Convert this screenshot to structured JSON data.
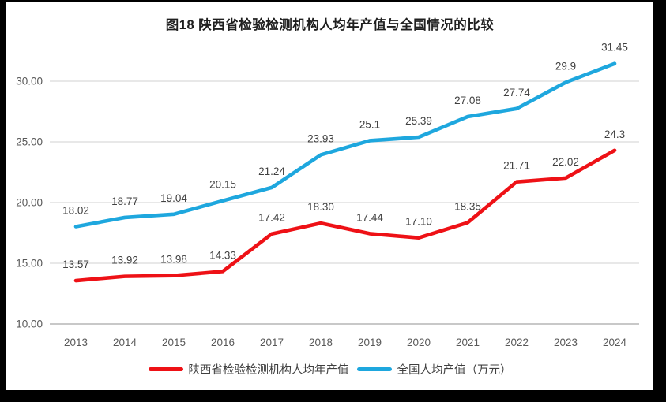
{
  "title": "图18 陕西省检验检测机构人均年产值与全国情况的比较",
  "chart_data": {
    "type": "line",
    "title": "图18 陕西省检验检测机构人均年产值与全国情况的比较",
    "categories": [
      "2013",
      "2014",
      "2015",
      "2016",
      "2017",
      "2018",
      "2019",
      "2020",
      "2021",
      "2022",
      "2023",
      "2024"
    ],
    "series": [
      {
        "name": "陕西省检验检测机构人均年产值",
        "color": "#ee1116",
        "values": [
          13.57,
          13.92,
          13.98,
          14.33,
          17.42,
          18.3,
          17.44,
          17.1,
          18.35,
          21.71,
          22.02,
          24.3
        ],
        "labels": [
          "13.57",
          "13.92",
          "13.98",
          "14.33",
          "17.42",
          "18.30",
          "17.44",
          "17.10",
          "18.35",
          "21.71",
          "22.02",
          "24.3"
        ]
      },
      {
        "name": "全国人均产值（万元）",
        "color": "#1ea7de",
        "values": [
          18.02,
          18.77,
          19.04,
          20.15,
          21.24,
          23.93,
          25.1,
          25.39,
          27.08,
          27.74,
          29.9,
          31.45
        ],
        "labels": [
          "18.02",
          "18.77",
          "19.04",
          "20.15",
          "21.24",
          "23.93",
          "25.1",
          "25.39",
          "27.08",
          "27.74",
          "29.9",
          "31.45"
        ]
      }
    ],
    "y_ticks": [
      {
        "value": 10,
        "label": "10.00"
      },
      {
        "value": 15,
        "label": "15.00"
      },
      {
        "value": 20,
        "label": "20.00"
      },
      {
        "value": 25,
        "label": "25.00"
      },
      {
        "value": 30,
        "label": "30.00"
      }
    ],
    "ylim": [
      10,
      33
    ],
    "xlabel": "",
    "ylabel": "",
    "grid": "horizontal",
    "legend_position": "bottom"
  },
  "colors": {
    "grid_line": "#d9d9d9",
    "axis_line": "#a6a6a6",
    "tick_label": "#595959",
    "data_label": "#404040",
    "frame": "#000000",
    "background": "#ffffff"
  }
}
